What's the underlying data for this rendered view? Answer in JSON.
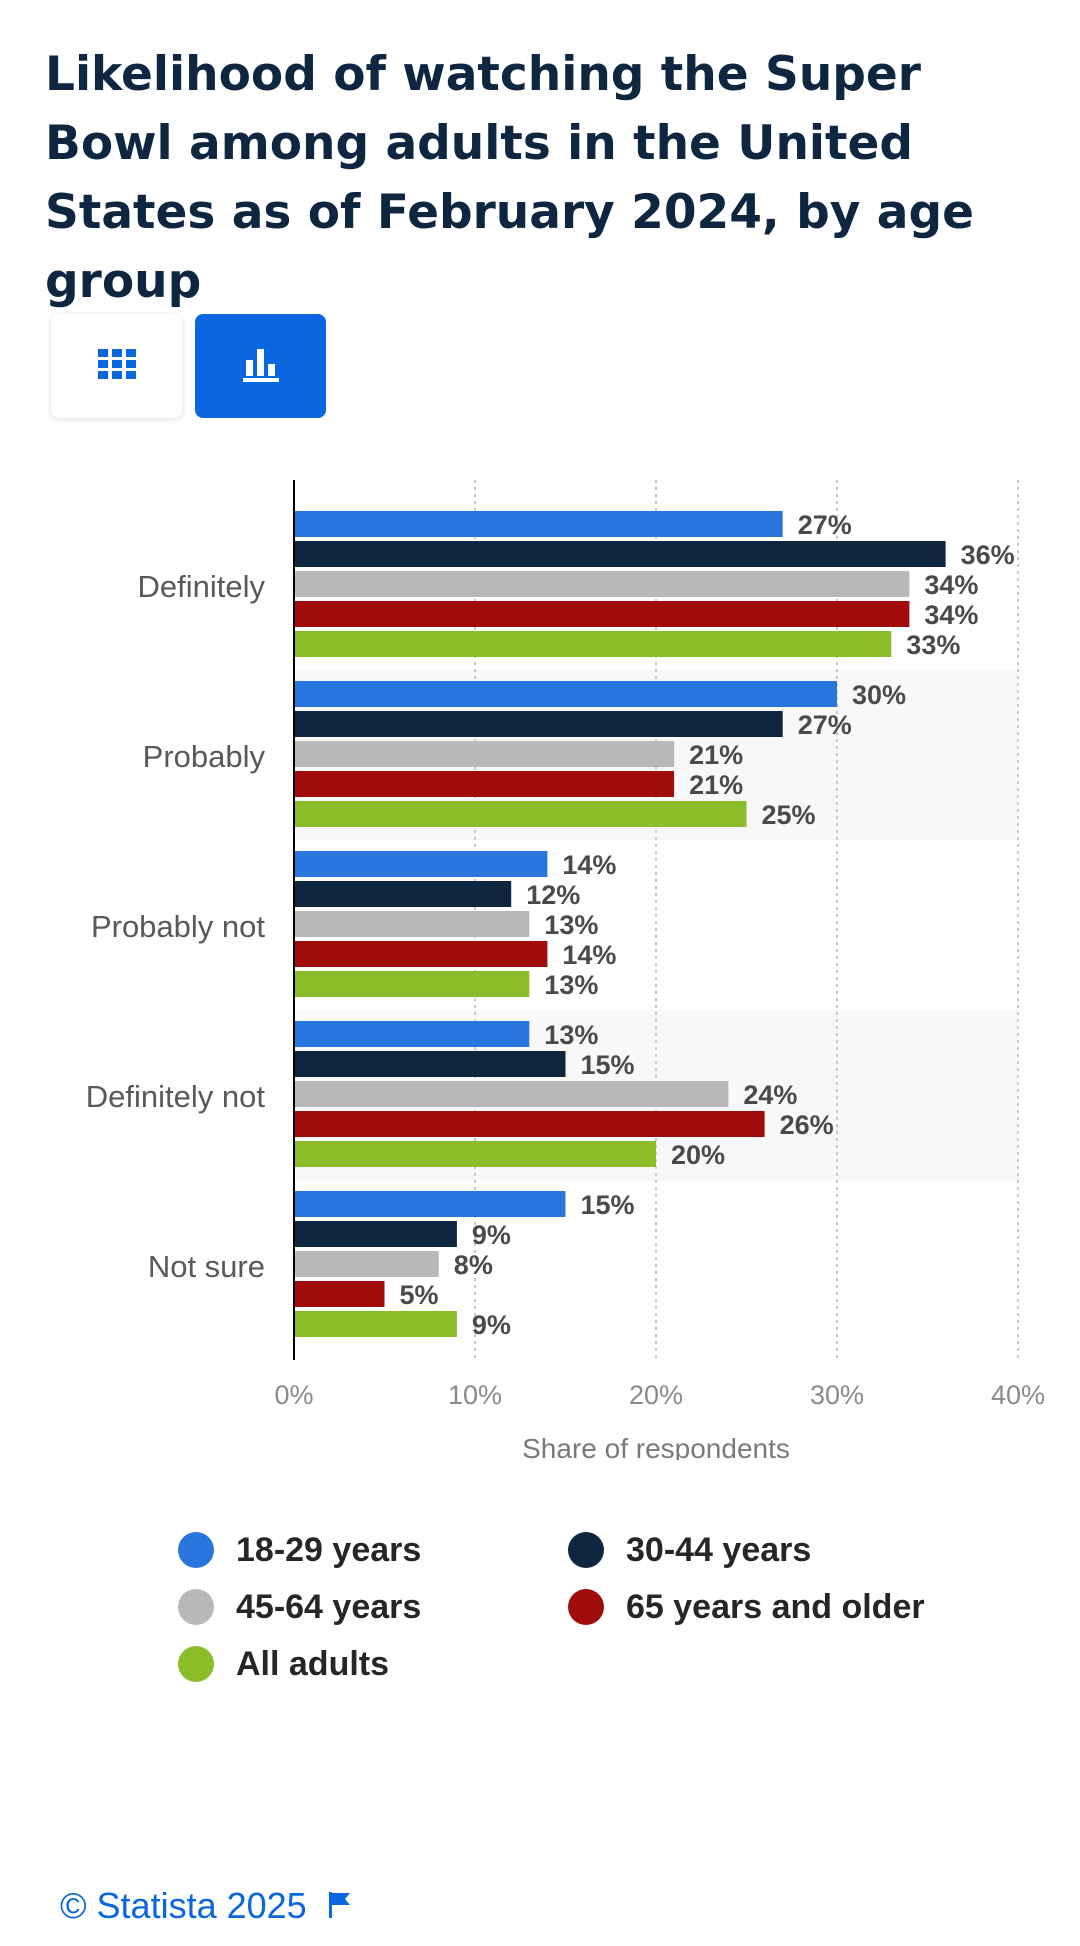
{
  "title": "Likelihood of watching the Super Bowl among adults in the United States as of February 2024, by age group",
  "toggles": {
    "table_icon": "grid-icon",
    "chart_icon": "bar-chart-icon",
    "active": "chart"
  },
  "footer": {
    "copyright": "© Statista 2025",
    "flag_icon": "flag-icon"
  },
  "colors": {
    "accent": "#0b67e0",
    "title": "#0f2640"
  },
  "chart_data": {
    "type": "bar",
    "orientation": "horizontal",
    "categories": [
      "Definitely",
      "Probably",
      "Probably not",
      "Definitely not",
      "Not sure"
    ],
    "series": [
      {
        "name": "18-29 years",
        "color": "#2876dd",
        "values": [
          27,
          30,
          14,
          13,
          15
        ]
      },
      {
        "name": "30-44 years",
        "color": "#0f2640",
        "values": [
          36,
          27,
          12,
          15,
          9
        ]
      },
      {
        "name": "45-64 years",
        "color": "#b8b8b8",
        "values": [
          34,
          21,
          13,
          24,
          8
        ]
      },
      {
        "name": "65 years and older",
        "color": "#a00c0c",
        "values": [
          34,
          21,
          14,
          26,
          5
        ]
      },
      {
        "name": "All adults",
        "color": "#8bbc2a",
        "values": [
          33,
          25,
          13,
          20,
          9
        ]
      }
    ],
    "xlabel": "Share of respondents",
    "ylabel": "",
    "xlim": [
      0,
      40
    ],
    "xticks": [
      "0%",
      "10%",
      "20%",
      "30%",
      "40%"
    ],
    "value_suffix": "%",
    "grid": "vertical dotted",
    "legend_position": "bottom"
  }
}
